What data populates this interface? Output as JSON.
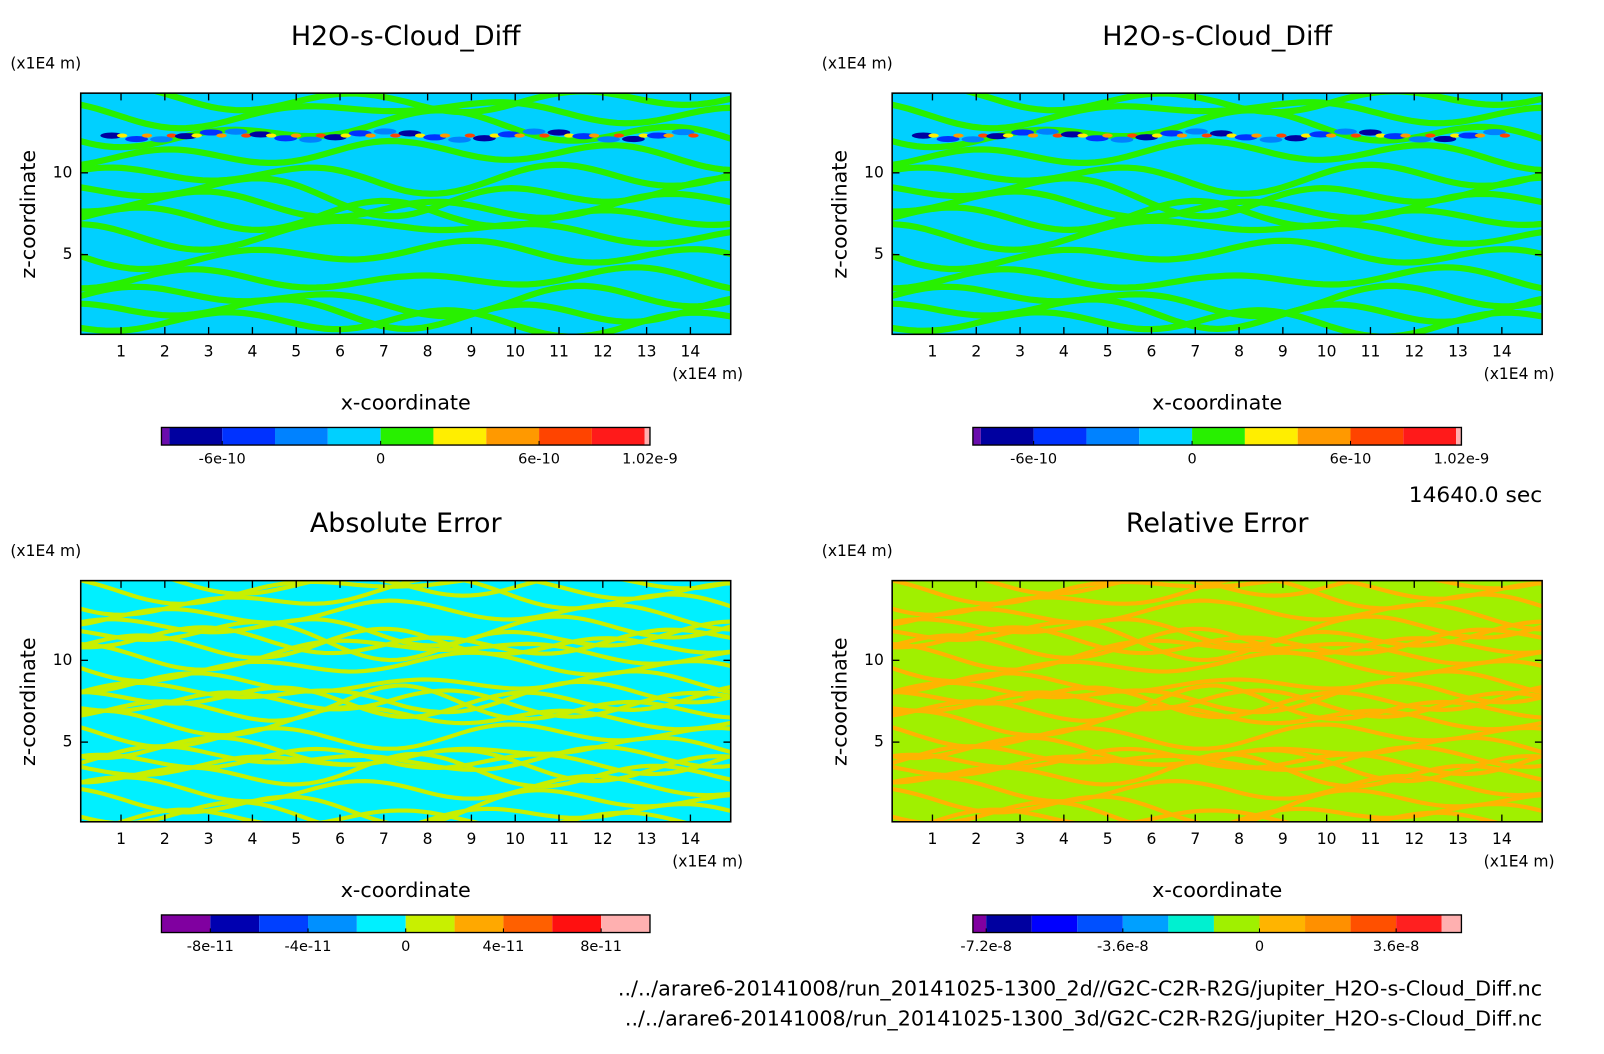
{
  "chart_data": [
    {
      "type": "contour",
      "title": "H2O-s-Cloud_Diff",
      "x_label": "x-coordinate",
      "y_label": "z-coordinate",
      "x_unit": "(x1E4 m)",
      "y_unit": "(x1E4 m)",
      "xlim": [
        0.08,
        14.92
      ],
      "ylim": [
        0.13,
        14.87
      ],
      "xticks": [
        1,
        2,
        3,
        4,
        5,
        6,
        7,
        8,
        9,
        10,
        11,
        12,
        13,
        14
      ],
      "yticks": [
        5,
        10
      ],
      "colorbar": {
        "bounds": [
          -8.3e-10,
          -8e-10,
          -6e-10,
          -4e-10,
          -2e-10,
          0,
          2e-10,
          4e-10,
          6e-10,
          8e-10,
          1e-09,
          1.02e-09
        ],
        "colors": [
          "#6a0dad",
          "#0000a0",
          "#0032ff",
          "#0082ff",
          "#00d0ff",
          "#28f000",
          "#ffee00",
          "#ff9900",
          "#ff4400",
          "#ff1a1a",
          "#ffb0b0"
        ],
        "ticks": [
          {
            "value": -6e-10,
            "label": "-6e-10"
          },
          {
            "value": 0,
            "label": "0"
          },
          {
            "value": 6e-10,
            "label": "6e-10"
          },
          {
            "value": 1.02e-09,
            "label": "1.02e-9"
          }
        ]
      }
    },
    {
      "type": "contour",
      "title": "H2O-s-Cloud_Diff",
      "x_label": "x-coordinate",
      "y_label": "z-coordinate",
      "x_unit": "(x1E4 m)",
      "y_unit": "(x1E4 m)",
      "xlim": [
        0.08,
        14.92
      ],
      "ylim": [
        0.13,
        14.87
      ],
      "xticks": [
        1,
        2,
        3,
        4,
        5,
        6,
        7,
        8,
        9,
        10,
        11,
        12,
        13,
        14
      ],
      "yticks": [
        5,
        10
      ],
      "colorbar": {
        "bounds": [
          -8.3e-10,
          -8e-10,
          -6e-10,
          -4e-10,
          -2e-10,
          0,
          2e-10,
          4e-10,
          6e-10,
          8e-10,
          1e-09,
          1.02e-09
        ],
        "colors": [
          "#6a0dad",
          "#0000a0",
          "#0032ff",
          "#0082ff",
          "#00d0ff",
          "#28f000",
          "#ffee00",
          "#ff9900",
          "#ff4400",
          "#ff1a1a",
          "#ffb0b0"
        ],
        "ticks": [
          {
            "value": -6e-10,
            "label": "-6e-10"
          },
          {
            "value": 0,
            "label": "0"
          },
          {
            "value": 6e-10,
            "label": "6e-10"
          },
          {
            "value": 1.02e-09,
            "label": "1.02e-9"
          }
        ]
      }
    },
    {
      "type": "contour",
      "title": "Absolute Error",
      "x_label": "x-coordinate",
      "y_label": "z-coordinate",
      "x_unit": "(x1E4 m)",
      "y_unit": "(x1E4 m)",
      "xlim": [
        0.08,
        14.92
      ],
      "ylim": [
        0.13,
        14.87
      ],
      "xticks": [
        1,
        2,
        3,
        4,
        5,
        6,
        7,
        8,
        9,
        10,
        11,
        12,
        13,
        14
      ],
      "yticks": [
        5,
        10
      ],
      "colorbar": {
        "bounds": [
          -1e-10,
          -8e-11,
          -6e-11,
          -4e-11,
          -2e-11,
          0,
          2e-11,
          4e-11,
          6e-11,
          8e-11,
          1e-10
        ],
        "colors": [
          "#8000a0",
          "#0000b0",
          "#0040ff",
          "#0090ff",
          "#00f0ff",
          "#c8f000",
          "#ffa800",
          "#ff6000",
          "#ff1010",
          "#ffb0b0"
        ],
        "ticks": [
          {
            "value": -8e-11,
            "label": "-8e-11"
          },
          {
            "value": -4e-11,
            "label": "-4e-11"
          },
          {
            "value": 0,
            "label": "0"
          },
          {
            "value": 4e-11,
            "label": "4e-11"
          },
          {
            "value": 8e-11,
            "label": "8e-11"
          }
        ]
      }
    },
    {
      "type": "contour",
      "title": "Relative Error",
      "x_label": "x-coordinate",
      "y_label": "z-coordinate",
      "x_unit": "(x1E4 m)",
      "y_unit": "(x1E4 m)",
      "xlim": [
        0.08,
        14.92
      ],
      "ylim": [
        0.13,
        14.87
      ],
      "xticks": [
        1,
        2,
        3,
        4,
        5,
        6,
        7,
        8,
        9,
        10,
        11,
        12,
        13,
        14
      ],
      "yticks": [
        5,
        10
      ],
      "colorbar": {
        "bounds": [
          -7.55e-08,
          -7.2e-08,
          -6e-08,
          -4.8e-08,
          -3.6e-08,
          -2.4e-08,
          -1.2e-08,
          0,
          1.2e-08,
          2.4e-08,
          3.6e-08,
          4.8e-08,
          5.32e-08
        ],
        "colors": [
          "#8000a0",
          "#0000a0",
          "#0000ff",
          "#0050ff",
          "#00a0ff",
          "#00f0d0",
          "#a0f000",
          "#ffb400",
          "#ff9000",
          "#ff5000",
          "#ff2020",
          "#ffb0b0"
        ],
        "ticks": [
          {
            "value": -7.2e-08,
            "label": "-7.2e-8"
          },
          {
            "value": -3.6e-08,
            "label": "-3.6e-8"
          },
          {
            "value": 0,
            "label": "0"
          },
          {
            "value": 3.6e-08,
            "label": "3.6e-8"
          }
        ]
      }
    }
  ],
  "time_label": "14640.0 sec",
  "files": [
    "../../arare6-20141008/run_20141025-1300_2d//G2C-C2R-R2G/jupiter_H2O-s-Cloud_Diff.nc",
    "../../arare6-20141008/run_20141025-1300_3d/G2C-C2R-R2G/jupiter_H2O-s-Cloud_Diff.nc"
  ]
}
